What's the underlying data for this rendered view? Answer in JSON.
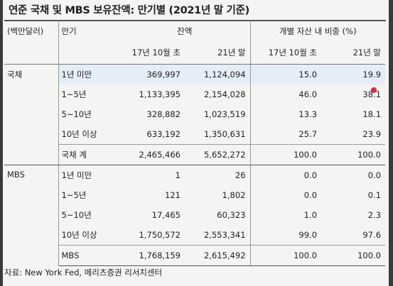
{
  "title": "연준 국채 및 MBS 보유잔액: 만기별 (2021년 말 기준)",
  "header": {
    "unit": "(백만달러)",
    "maturity": "만기",
    "balance": "잔액",
    "share": "개별 자산 내 비중 (%)",
    "col_2017": "17년 10월 초",
    "col_2021": "21년 말",
    "col_share_2017": "17년 10월 초",
    "col_share_2021": "21년 말"
  },
  "groups": [
    {
      "name": "국채",
      "rows": [
        {
          "maturity": "1년 미만",
          "b2017": "369,997",
          "b2021": "1,124,094",
          "s2017": "15.0",
          "s2021": "19.9"
        },
        {
          "maturity": "1~5년",
          "b2017": "1,133,395",
          "b2021": "2,154,028",
          "s2017": "46.0",
          "s2021": "38.1"
        },
        {
          "maturity": "5~10년",
          "b2017": "328,882",
          "b2021": "1,023,519",
          "s2017": "13.3",
          "s2021": "18.1"
        },
        {
          "maturity": "10년 이상",
          "b2017": "633,192",
          "b2021": "1,350,631",
          "s2017": "25.7",
          "s2021": "23.9"
        },
        {
          "maturity": "국채 계",
          "b2017": "2,465,466",
          "b2021": "5,652,272",
          "s2017": "100.0",
          "s2021": "100.0"
        }
      ]
    },
    {
      "name": "MBS",
      "rows": [
        {
          "maturity": "1년 미만",
          "b2017": "1",
          "b2021": "26",
          "s2017": "0.0",
          "s2021": "0.0"
        },
        {
          "maturity": "1~5년",
          "b2017": "121",
          "b2021": "1,802",
          "s2017": "0.0",
          "s2021": "0.1"
        },
        {
          "maturity": "5~10년",
          "b2017": "17,465",
          "b2021": "60,323",
          "s2017": "1.0",
          "s2021": "2.3"
        },
        {
          "maturity": "10년 이상",
          "b2017": "1,750,572",
          "b2021": "2,553,341",
          "s2017": "99.0",
          "s2021": "97.6"
        },
        {
          "maturity": "MBS",
          "b2017": "1,768,159",
          "b2021": "2,615,492",
          "s2017": "100.0",
          "s2021": "100.0"
        }
      ]
    }
  ],
  "source": "자료: New York Fed, 메리츠증권 리서치센터",
  "colors": {
    "highlight": "#dfeaf6",
    "cursor_dot": "#e0244a"
  }
}
